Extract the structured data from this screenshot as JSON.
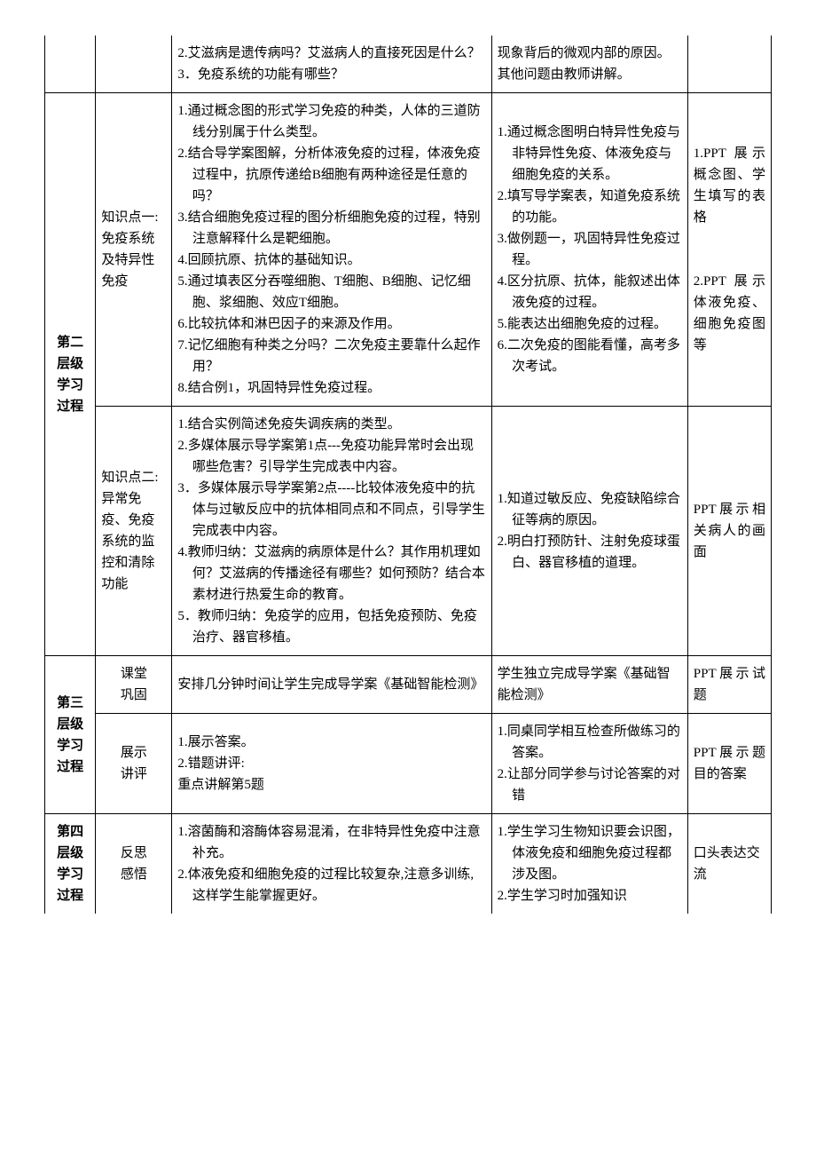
{
  "row1": {
    "c3": "2.艾滋病是遗传病吗？艾滋病人的直接死因是什么？\n3．免疫系统的功能有哪些？",
    "c4": "现象背后的微观内部的原因。其他问题由教师讲解。"
  },
  "level2_label": "第二层级学习过程",
  "row2a": {
    "topic": "知识点一:\n免疫系统及特异性免疫",
    "c3_items": [
      "1.通过概念图的形式学习免疫的种类，人体的三道防线分别属于什么类型。",
      "2.结合导学案图解，分析体液免疫的过程，体液免疫过程中，抗原传递给B细胞有两种途径是任意的吗？",
      "3.结合细胞免疫过程的图分析细胞免疫的过程，特别注意解释什么是靶细胞。",
      "4.回顾抗原、抗体的基础知识。",
      "5.通过填表区分吞噬细胞、T细胞、B细胞、记忆细胞、浆细胞、效应T细胞。",
      "6.比较抗体和淋巴因子的来源及作用。",
      "7.记忆细胞有种类之分吗？二次免疫主要靠什么起作用？",
      "8.结合例1，巩固特异性免疫过程。"
    ],
    "c4_items": [
      "1.通过概念图明白特异性免疫与非特异性免疫、体液免疫与细胞免疫的关系。",
      "2.填写导学案表，知道免疫系统的功能。",
      "3.做例题一，巩固特异性免疫过程。",
      "4.区分抗原、抗体，能叙述出体液免疫的过程。",
      "5.能表达出细胞免疫的过程。",
      "6.二次免疫的图能看懂，高考多次考试。"
    ],
    "c5": "1.PPT 展示概念图、学生填写的表格\n\n\n2.PPT 展示体液免疫、细胞免疫图等"
  },
  "row2b": {
    "topic": "知识点二:\n异常免疫、免疫系统的监控和清除功能",
    "c3_items": [
      "1.结合实例简述免疫失调疾病的类型。",
      "2.多媒体展示导学案第1点---免疫功能异常时会出现哪些危害？引导学生完成表中内容。",
      "3．多媒体展示导学案第2点----比较体液免疫中的抗体与过敏反应中的抗体相同点和不同点，引导学生完成表中内容。",
      "4.教师归纳：艾滋病的病原体是什么？其作用机理如何？艾滋病的传播途径有哪些？如何预防？结合本素材进行热爱生命的教育。",
      "5．教师归纳：免疫学的应用，包括免疫预防、免疫治疗、器官移植。"
    ],
    "c4_items": [
      "1.知道过敏反应、免疫缺陷综合征等病的原因。",
      "2.明白打预防针、注射免疫球蛋白、器官移植的道理。"
    ],
    "c5": "PPT展示相关病人的画面"
  },
  "level3_label": "第三层级学习过程",
  "row3a": {
    "topic": "课堂\n巩固",
    "c3": "安排几分钟时间让学生完成导学案《基础智能检测》",
    "c4": "学生独立完成导学案《基础智能检测》",
    "c5": "PPT展示试题"
  },
  "row3b": {
    "topic": "展示\n讲评",
    "c3": "1.展示答案。\n2.错题讲评:\n重点讲解第5题",
    "c4_items": [
      "1.同桌同学相互检查所做练习的答案。",
      "2.让部分同学参与讨论答案的对错"
    ],
    "c5": "PPT展示题目的答案"
  },
  "level4_label": "第四层级学习过程",
  "row4": {
    "topic": "反思\n感悟",
    "c3_items": [
      "1.溶菌酶和溶酶体容易混淆，在非特异性免疫中注意补充。",
      "2.体液免疫和细胞免疫的过程比较复杂,注意多训练,这样学生能掌握更好。"
    ],
    "c4_items": [
      "1.学生学习生物知识要会识图，体液免疫和细胞免疫过程都涉及图。",
      "2.学生学习时加强知识"
    ],
    "c5": "口头表达交流"
  }
}
